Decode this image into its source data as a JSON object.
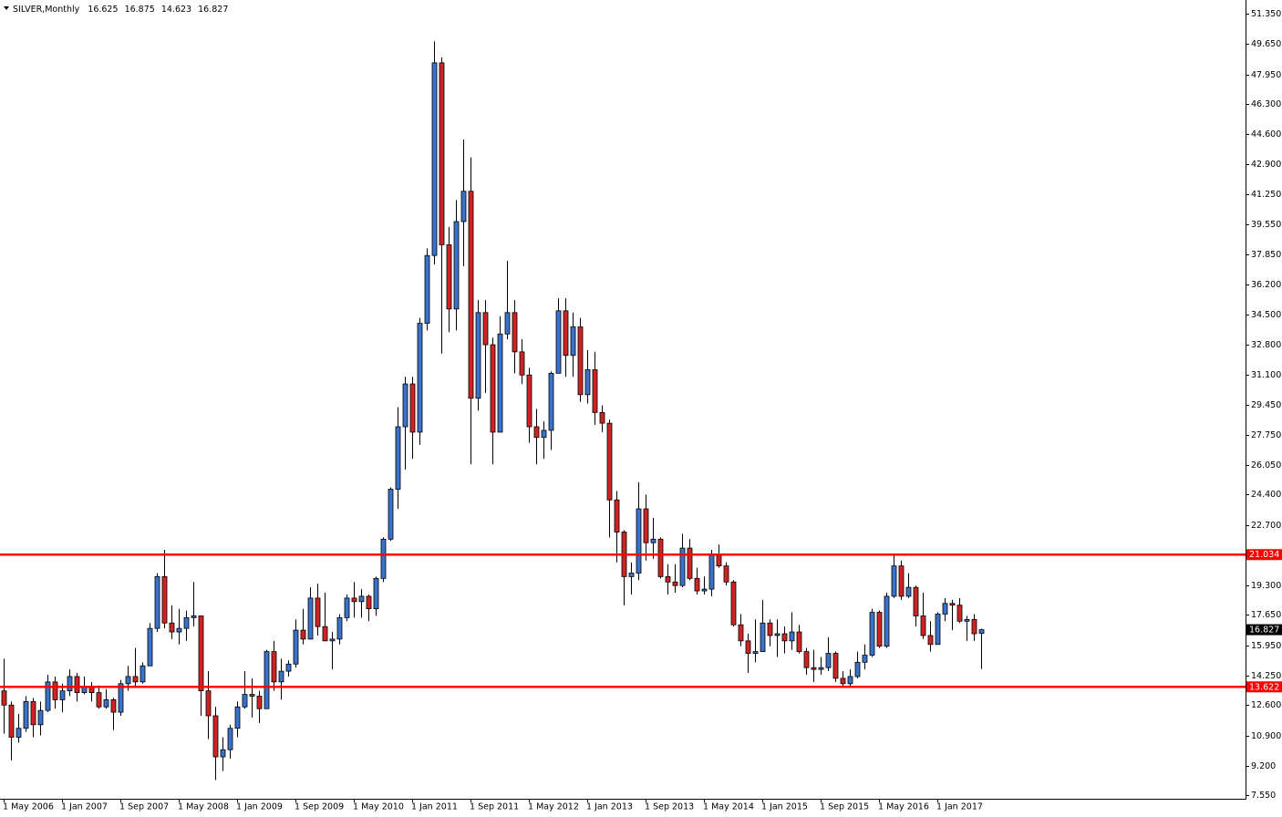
{
  "chart_data": {
    "type": "candlestick",
    "title": "SILVER,Monthly",
    "categories": [
      "1 May 2006",
      null,
      null,
      null,
      null,
      null,
      null,
      null,
      "1 Jan 2007",
      null,
      null,
      null,
      null,
      null,
      null,
      null,
      "1 Sep 2007",
      null,
      null,
      null,
      null,
      null,
      null,
      null,
      "1 May 2008",
      null,
      null,
      null,
      null,
      null,
      null,
      null,
      "1 Jan 2009",
      null,
      null,
      null,
      null,
      null,
      null,
      null,
      "1 Sep 2009",
      null,
      null,
      null,
      null,
      null,
      null,
      null,
      "1 May 2010",
      null,
      null,
      null,
      null,
      null,
      null,
      null,
      "1 Jan 2011",
      null,
      null,
      null,
      null,
      null,
      null,
      null,
      "1 Sep 2011",
      null,
      null,
      null,
      null,
      null,
      null,
      null,
      "1 May 2012",
      null,
      null,
      null,
      null,
      null,
      null,
      null,
      "1 Jan 2013",
      null,
      null,
      null,
      null,
      null,
      null,
      null,
      "1 Sep 2013",
      null,
      null,
      null,
      null,
      null,
      null,
      null,
      "1 May 2014",
      null,
      null,
      null,
      null,
      null,
      null,
      null,
      "1 Jan 2015",
      null,
      null,
      null,
      null,
      null,
      null,
      null,
      "1 Sep 2015",
      null,
      null,
      null,
      null,
      null,
      null,
      null,
      "1 May 2016",
      null,
      null,
      null,
      null,
      null,
      null,
      null,
      "1 Jan 2017",
      null,
      null,
      null,
      null,
      null,
      null
    ],
    "series": [
      {
        "up_color": "#3a72c8",
        "down_color": "#d02424",
        "open": [
          13.4,
          12.6,
          10.8,
          11.3,
          12.8,
          11.5,
          12.3,
          13.9,
          12.9,
          13.4,
          14.2,
          13.3,
          13.6,
          13.3,
          12.5,
          12.9,
          12.2,
          13.8,
          14.2,
          13.9,
          14.8,
          16.9,
          19.8,
          17.2,
          16.7,
          16.9,
          17.5,
          17.6,
          13.4,
          12.0,
          9.7,
          10.1,
          11.3,
          12.5,
          13.2,
          13.1,
          12.4,
          15.6,
          13.9,
          14.5,
          14.9,
          16.8,
          16.3,
          18.6,
          17.0,
          16.2,
          16.3,
          17.5,
          18.6,
          18.4,
          18.7,
          18.0,
          19.7,
          21.9,
          24.7,
          28.2,
          30.6,
          27.9,
          34.0,
          37.8,
          48.6,
          38.4,
          34.8,
          39.7,
          41.4,
          29.8,
          34.6,
          32.8,
          27.9,
          33.4,
          34.6,
          32.4,
          31.1,
          28.2,
          27.6,
          28.0,
          31.2,
          34.7,
          32.2,
          33.8,
          30.0,
          31.4,
          29.0,
          28.4,
          24.1,
          22.3,
          19.8,
          20.0,
          23.6,
          21.7,
          21.9,
          19.8,
          19.5,
          19.3,
          21.4,
          19.7,
          19.0,
          19.1,
          21.0,
          20.4,
          19.5,
          17.1,
          16.2,
          15.5,
          15.6,
          17.2,
          16.5,
          16.6,
          16.2,
          16.7,
          15.6,
          14.7,
          14.6,
          14.7,
          15.5,
          14.1,
          13.8,
          14.2,
          15.0,
          15.4,
          17.8,
          15.9,
          18.7,
          20.4,
          18.7,
          19.2,
          17.6,
          16.5,
          16.0,
          17.7,
          18.3,
          18.2,
          17.3,
          17.4,
          16.625
        ],
        "high": [
          15.2,
          12.8,
          12.1,
          13.1,
          13.0,
          12.8,
          14.3,
          14.2,
          13.8,
          14.6,
          14.4,
          14.2,
          13.9,
          13.7,
          13.5,
          13.0,
          14.0,
          14.8,
          15.8,
          15.0,
          17.2,
          20.0,
          21.3,
          18.2,
          18.0,
          17.9,
          19.5,
          17.6,
          14.5,
          12.5,
          10.8,
          11.5,
          12.8,
          14.5,
          14.1,
          13.4,
          15.7,
          16.2,
          15.2,
          15.1,
          17.4,
          18.0,
          19.2,
          19.4,
          18.9,
          16.7,
          17.7,
          18.8,
          19.5,
          19.1,
          18.8,
          19.8,
          22.0,
          24.8,
          29.3,
          31.0,
          31.0,
          34.3,
          38.2,
          49.8,
          48.9,
          39.4,
          40.9,
          44.3,
          43.3,
          35.3,
          35.3,
          33.2,
          34.4,
          37.5,
          35.3,
          33.1,
          31.5,
          29.2,
          28.5,
          31.3,
          35.4,
          35.4,
          34.6,
          34.3,
          32.5,
          32.4,
          29.4,
          28.6,
          24.6,
          22.4,
          20.6,
          25.1,
          24.4,
          23.1,
          22.0,
          20.5,
          20.5,
          22.2,
          21.9,
          20.3,
          19.8,
          21.3,
          21.6,
          20.6,
          19.6,
          17.7,
          16.6,
          17.4,
          18.5,
          17.4,
          17.4,
          17.0,
          17.8,
          17.1,
          15.8,
          15.7,
          15.3,
          16.4,
          15.6,
          14.5,
          14.6,
          15.6,
          16.0,
          18.0,
          17.9,
          18.9,
          21.1,
          20.7,
          20.0,
          19.3,
          18.9,
          17.3,
          17.8,
          18.6,
          18.5,
          18.6,
          17.6,
          17.7,
          16.875
        ],
        "low": [
          11.0,
          9.5,
          10.5,
          11.1,
          10.8,
          10.9,
          12.2,
          12.4,
          12.2,
          13.1,
          12.8,
          13.2,
          12.8,
          12.4,
          12.4,
          11.2,
          12.0,
          13.4,
          13.6,
          13.8,
          14.8,
          16.7,
          16.9,
          16.3,
          16.0,
          16.2,
          17.0,
          12.0,
          10.7,
          8.4,
          8.9,
          9.6,
          10.8,
          12.4,
          11.9,
          11.6,
          12.4,
          13.4,
          12.9,
          14.2,
          14.7,
          16.0,
          16.3,
          16.5,
          16.2,
          14.6,
          16.0,
          17.3,
          17.5,
          17.5,
          17.3,
          17.6,
          19.5,
          21.8,
          23.6,
          25.8,
          26.4,
          27.2,
          33.6,
          37.3,
          32.3,
          33.5,
          33.6,
          37.2,
          26.1,
          29.1,
          30.1,
          26.1,
          27.9,
          33.1,
          31.2,
          30.6,
          27.3,
          26.1,
          26.4,
          26.9,
          31.2,
          31.0,
          31.0,
          29.6,
          29.5,
          28.3,
          27.9,
          22.0,
          20.6,
          18.2,
          18.8,
          19.6,
          20.7,
          20.8,
          19.7,
          18.8,
          18.9,
          19.2,
          19.6,
          18.8,
          18.8,
          18.7,
          20.3,
          19.3,
          17.0,
          15.9,
          14.4,
          15.0,
          15.6,
          15.9,
          15.3,
          15.5,
          15.7,
          15.5,
          14.3,
          13.9,
          14.3,
          14.5,
          13.9,
          13.6,
          13.6,
          14.1,
          14.6,
          15.3,
          15.8,
          15.8,
          18.6,
          18.5,
          18.6,
          17.0,
          16.3,
          15.6,
          16.0,
          17.3,
          16.8,
          17.2,
          16.2,
          16.2,
          14.623
        ],
        "close": [
          12.6,
          10.8,
          11.3,
          12.8,
          11.5,
          12.3,
          13.9,
          12.9,
          13.4,
          14.2,
          13.3,
          13.6,
          13.3,
          12.5,
          12.9,
          12.2,
          13.8,
          14.2,
          13.9,
          14.8,
          16.9,
          19.8,
          17.2,
          16.7,
          16.9,
          17.5,
          17.6,
          13.4,
          12.0,
          9.7,
          10.1,
          11.3,
          12.5,
          13.2,
          13.1,
          12.4,
          15.6,
          13.9,
          14.5,
          14.9,
          16.8,
          16.3,
          18.6,
          17.0,
          16.2,
          16.3,
          17.5,
          18.6,
          18.4,
          18.7,
          18.0,
          19.7,
          21.9,
          24.7,
          28.2,
          30.6,
          27.9,
          34.0,
          37.8,
          48.6,
          38.4,
          34.8,
          39.7,
          41.4,
          29.8,
          34.6,
          32.8,
          27.9,
          33.4,
          34.6,
          32.4,
          31.1,
          28.2,
          27.6,
          28.0,
          31.2,
          34.7,
          32.2,
          33.8,
          30.0,
          31.4,
          29.0,
          28.4,
          24.1,
          22.3,
          19.8,
          20.0,
          23.6,
          21.7,
          21.9,
          19.8,
          19.5,
          19.3,
          21.4,
          19.7,
          19.0,
          19.1,
          21.0,
          20.4,
          19.5,
          17.1,
          16.2,
          15.5,
          15.6,
          17.2,
          16.5,
          16.6,
          16.2,
          16.7,
          15.6,
          14.7,
          14.6,
          14.7,
          15.5,
          14.1,
          13.8,
          14.2,
          15.0,
          15.4,
          17.8,
          15.9,
          18.7,
          20.4,
          18.7,
          19.2,
          17.6,
          16.5,
          16.0,
          17.7,
          18.3,
          18.2,
          17.3,
          17.4,
          16.6,
          16.827
        ]
      }
    ],
    "ylim": [
      7.35,
      52.12
    ],
    "yticks": [
      {
        "value": 51.35,
        "label": "51.350"
      },
      {
        "value": 49.65,
        "label": "49.650"
      },
      {
        "value": 47.95,
        "label": "47.950"
      },
      {
        "value": 46.3,
        "label": "46.300"
      },
      {
        "value": 44.6,
        "label": "44.600"
      },
      {
        "value": 42.9,
        "label": "42.900"
      },
      {
        "value": 41.25,
        "label": "41.250"
      },
      {
        "value": 39.55,
        "label": "39.550"
      },
      {
        "value": 37.85,
        "label": "37.850"
      },
      {
        "value": 36.2,
        "label": "36.200"
      },
      {
        "value": 34.5,
        "label": "34.500"
      },
      {
        "value": 32.8,
        "label": "32.800"
      },
      {
        "value": 31.1,
        "label": "31.100"
      },
      {
        "value": 29.45,
        "label": "29.450"
      },
      {
        "value": 27.75,
        "label": "27.750"
      },
      {
        "value": 26.05,
        "label": "26.050"
      },
      {
        "value": 24.4,
        "label": "24.400"
      },
      {
        "value": 22.7,
        "label": "22.700"
      },
      {
        "value": 19.3,
        "label": "19.300"
      },
      {
        "value": 17.65,
        "label": "17.650"
      },
      {
        "value": 15.95,
        "label": "15.950"
      },
      {
        "value": 14.25,
        "label": "14.250"
      },
      {
        "value": 12.6,
        "label": "12.600"
      },
      {
        "value": 10.9,
        "label": "10.900"
      },
      {
        "value": 9.2,
        "label": "9.200"
      },
      {
        "value": 7.55,
        "label": "7.550"
      }
    ],
    "hlines": [
      {
        "value": 21.034,
        "color": "#ff0000"
      },
      {
        "value": 13.622,
        "color": "#ff0000"
      }
    ],
    "grid": false
  }
}
